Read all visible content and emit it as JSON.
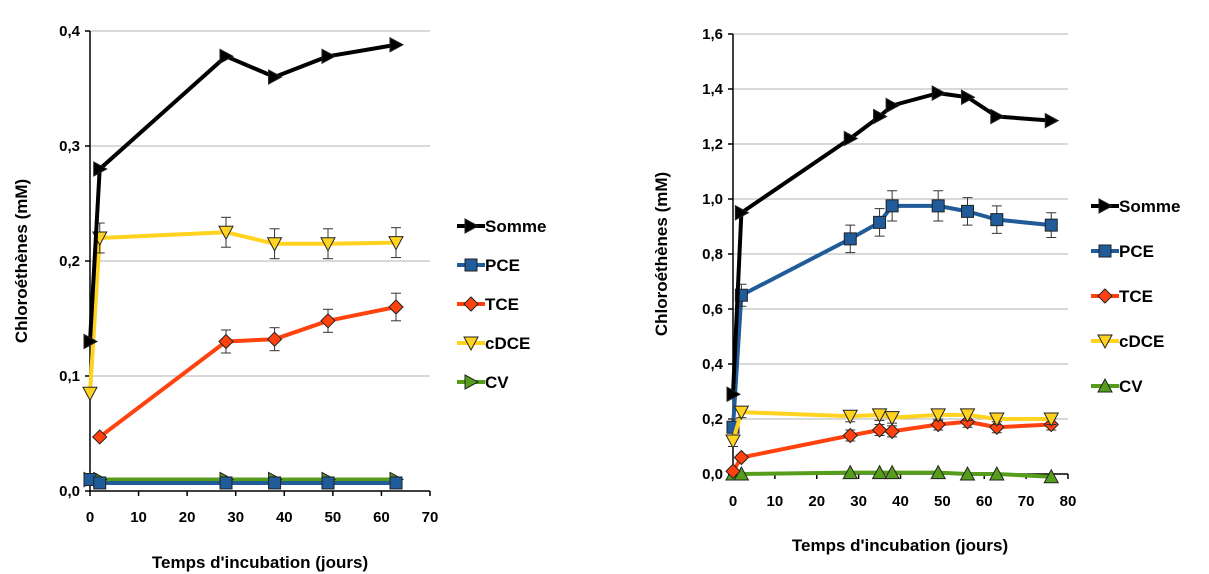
{
  "chart_data": [
    {
      "type": "line",
      "title": "",
      "xlabel": "Temps d'incubation (jours)",
      "ylabel": "Chloroéthènes (mM)",
      "xlim": [
        0,
        70
      ],
      "ylim": [
        0,
        0.4
      ],
      "x_ticks": [
        "0",
        "10",
        "20",
        "30",
        "40",
        "50",
        "60",
        "70"
      ],
      "x_tick_values": [
        0,
        10,
        20,
        30,
        40,
        50,
        60,
        70
      ],
      "y_ticks": [
        "0,0",
        "0,1",
        "0,2",
        "0,3",
        "0,4"
      ],
      "y_tick_values": [
        0,
        0.1,
        0.2,
        0.3,
        0.4
      ],
      "grid": "horizontal",
      "legend_position": "right",
      "series": [
        {
          "name": "Somme",
          "color": "#000000",
          "marker": "tri-right",
          "points": [
            [
              0,
              0.13
            ],
            [
              2,
              0.28
            ],
            [
              28,
              0.378
            ],
            [
              38,
              0.36
            ],
            [
              49,
              0.378
            ],
            [
              63,
              0.388
            ]
          ],
          "err": [
            0,
            0,
            0,
            0,
            0,
            0
          ]
        },
        {
          "name": "PCE",
          "color": "#1f5c99",
          "marker": "square",
          "points": [
            [
              0,
              0.01
            ],
            [
              2,
              0.007
            ],
            [
              28,
              0.007
            ],
            [
              38,
              0.007
            ],
            [
              49,
              0.007
            ],
            [
              63,
              0.007
            ]
          ],
          "err": [
            0,
            0,
            0,
            0,
            0,
            0
          ]
        },
        {
          "name": "TCE",
          "color": "#ff420e",
          "marker": "diamond",
          "points": [
            [
              2,
              0.047
            ],
            [
              28,
              0.13
            ],
            [
              38,
              0.132
            ],
            [
              49,
              0.148
            ],
            [
              63,
              0.16
            ]
          ],
          "err": [
            0,
            0.01,
            0.01,
            0.01,
            0.012
          ]
        },
        {
          "name": "cDCE",
          "color": "#ffd320",
          "marker": "tri-down",
          "points": [
            [
              0,
              0.085
            ],
            [
              2,
              0.22
            ],
            [
              28,
              0.225
            ],
            [
              38,
              0.215
            ],
            [
              49,
              0.215
            ],
            [
              63,
              0.216
            ]
          ],
          "err": [
            0,
            0.013,
            0.013,
            0.013,
            0.013,
            0.013
          ]
        },
        {
          "name": "CV",
          "color": "#579d1c",
          "marker": "tri-right",
          "points": [
            [
              0,
              0.01
            ],
            [
              2,
              0.01
            ],
            [
              28,
              0.01
            ],
            [
              38,
              0.01
            ],
            [
              49,
              0.01
            ],
            [
              63,
              0.01
            ]
          ],
          "err": [
            0,
            0,
            0,
            0,
            0,
            0
          ]
        }
      ]
    },
    {
      "type": "line",
      "title": "",
      "xlabel": "Temps d'incubation (jours)",
      "ylabel": "Chloroéthènes (mM)",
      "xlim": [
        0,
        80
      ],
      "ylim": [
        0,
        1.6
      ],
      "x_ticks": [
        "0",
        "10",
        "20",
        "30",
        "40",
        "50",
        "60",
        "70",
        "80"
      ],
      "x_tick_values": [
        0,
        10,
        20,
        30,
        40,
        50,
        60,
        70,
        80
      ],
      "y_ticks": [
        "0,0",
        "0,2",
        "0,4",
        "0,6",
        "0,8",
        "1,0",
        "1,2",
        "1,4",
        "1,6"
      ],
      "y_tick_values": [
        0,
        0.2,
        0.4,
        0.6,
        0.8,
        1.0,
        1.2,
        1.4,
        1.6
      ],
      "grid": "horizontal",
      "legend_position": "right",
      "series": [
        {
          "name": "Somme",
          "color": "#000000",
          "marker": "tri-right",
          "points": [
            [
              0,
              0.29
            ],
            [
              2,
              0.95
            ],
            [
              28,
              1.22
            ],
            [
              35,
              1.3
            ],
            [
              38,
              1.34
            ],
            [
              49,
              1.385
            ],
            [
              56,
              1.37
            ],
            [
              63,
              1.3
            ],
            [
              76,
              1.285
            ]
          ],
          "err": [
            0,
            0,
            0,
            0,
            0,
            0,
            0,
            0,
            0
          ]
        },
        {
          "name": "PCE",
          "color": "#1f5c99",
          "marker": "square",
          "points": [
            [
              0,
              0.17
            ],
            [
              2,
              0.65
            ],
            [
              28,
              0.855
            ],
            [
              35,
              0.915
            ],
            [
              38,
              0.975
            ],
            [
              49,
              0.975
            ],
            [
              56,
              0.955
            ],
            [
              63,
              0.925
            ],
            [
              76,
              0.905
            ]
          ],
          "err": [
            0.03,
            0.04,
            0.05,
            0.05,
            0.055,
            0.055,
            0.05,
            0.05,
            0.045
          ]
        },
        {
          "name": "TCE",
          "color": "#ff420e",
          "marker": "diamond",
          "points": [
            [
              0,
              0.01
            ],
            [
              2,
              0.06
            ],
            [
              28,
              0.14
            ],
            [
              35,
              0.16
            ],
            [
              38,
              0.155
            ],
            [
              49,
              0.18
            ],
            [
              56,
              0.19
            ],
            [
              63,
              0.17
            ],
            [
              76,
              0.18
            ]
          ],
          "err": [
            0,
            0.01,
            0.02,
            0.02,
            0.02,
            0.02,
            0.02,
            0.02,
            0.02
          ]
        },
        {
          "name": "cDCE",
          "color": "#ffd320",
          "marker": "tri-down",
          "points": [
            [
              0,
              0.12
            ],
            [
              2,
              0.225
            ],
            [
              28,
              0.21
            ],
            [
              35,
              0.215
            ],
            [
              38,
              0.205
            ],
            [
              49,
              0.215
            ],
            [
              56,
              0.215
            ],
            [
              63,
              0.2
            ],
            [
              76,
              0.2
            ]
          ],
          "err": [
            0.02,
            0.02,
            0.02,
            0.02,
            0.02,
            0.02,
            0.02,
            0.02,
            0.02
          ]
        },
        {
          "name": "CV",
          "color": "#579d1c",
          "marker": "tri-up",
          "points": [
            [
              0,
              0.0
            ],
            [
              2,
              0.0
            ],
            [
              28,
              0.005
            ],
            [
              35,
              0.005
            ],
            [
              38,
              0.005
            ],
            [
              49,
              0.005
            ],
            [
              56,
              0.0
            ],
            [
              63,
              0.0
            ],
            [
              76,
              -0.01
            ]
          ],
          "err": [
            0,
            0,
            0,
            0,
            0,
            0,
            0,
            0,
            0
          ]
        }
      ]
    }
  ]
}
